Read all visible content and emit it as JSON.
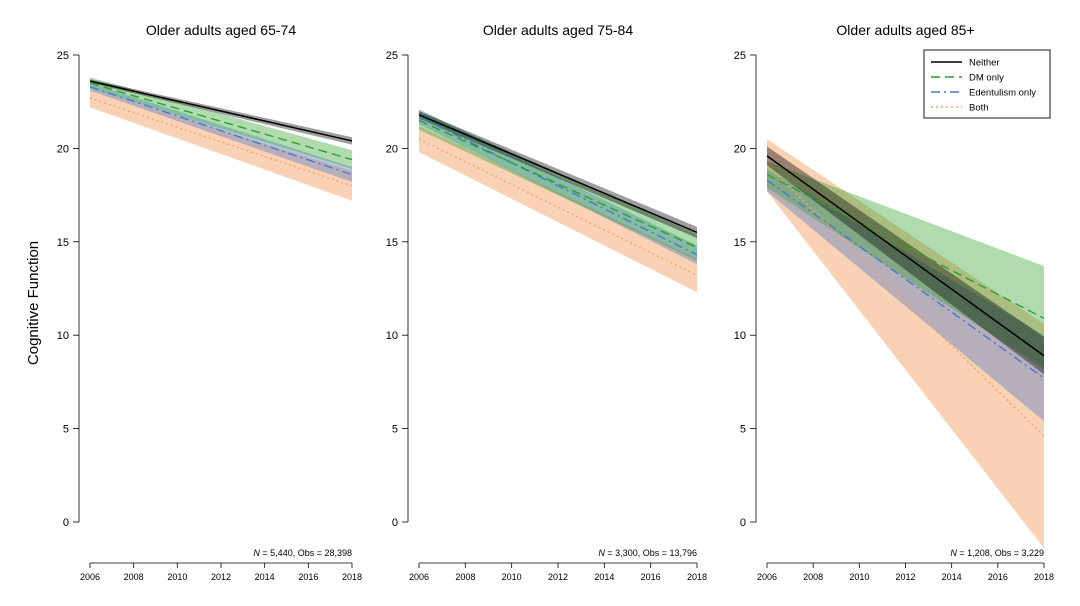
{
  "figure": {
    "ylabel": "Cognitive Function",
    "legend": {
      "placement": "top-right of third panel",
      "entries": [
        {
          "name": "Neither",
          "color": "#000000",
          "dash": "solid"
        },
        {
          "name": "DM only",
          "color": "#2ca02c",
          "dash": "dashed"
        },
        {
          "name": "Edentulism only",
          "color": "#4a77c9",
          "dash": "dashdot"
        },
        {
          "name": "Both",
          "color": "#f4a46a",
          "dash": "dotted"
        }
      ]
    }
  },
  "chart_data": [
    {
      "type": "line",
      "title": "Older adults aged 65-74",
      "note_n": "N",
      "note_text": " = 5,440, Obs = 28,398",
      "xlabel": "",
      "ylabel": "Cognitive Function",
      "x_ticks": [
        "2006",
        "2008",
        "2010",
        "2012",
        "2014",
        "2016",
        "2018"
      ],
      "y_ticks": [
        "0",
        "5",
        "10",
        "15",
        "20",
        "25"
      ],
      "xlim": [
        2006,
        2018
      ],
      "ylim": [
        0,
        25
      ],
      "x": [
        2006,
        2018
      ],
      "series": [
        {
          "name": "Neither",
          "color": "#000000",
          "values": [
            23.6,
            20.4
          ],
          "lower": [
            23.5,
            20.2
          ],
          "upper": [
            23.7,
            20.6
          ]
        },
        {
          "name": "DM only",
          "color": "#2ca02c",
          "values": [
            23.5,
            19.4
          ],
          "lower": [
            23.2,
            18.9
          ],
          "upper": [
            23.8,
            19.9
          ]
        },
        {
          "name": "Edentulism only",
          "color": "#4a77c9",
          "values": [
            23.3,
            18.6
          ],
          "lower": [
            23.1,
            18.2
          ],
          "upper": [
            23.5,
            19.0
          ]
        },
        {
          "name": "Both",
          "color": "#f4a46a",
          "values": [
            22.7,
            18.0
          ],
          "lower": [
            22.2,
            17.2
          ],
          "upper": [
            23.2,
            18.8
          ]
        }
      ]
    },
    {
      "type": "line",
      "title": "Older adults aged 75-84",
      "note_n": "N",
      "note_text": " = 3,300, Obs = 13,796",
      "xlabel": "",
      "ylabel": "",
      "x_ticks": [
        "2006",
        "2008",
        "2010",
        "2012",
        "2014",
        "2016",
        "2018"
      ],
      "y_ticks": [
        "0",
        "5",
        "10",
        "15",
        "20",
        "25"
      ],
      "xlim": [
        2006,
        2018
      ],
      "ylim": [
        0,
        25
      ],
      "x": [
        2006,
        2018
      ],
      "series": [
        {
          "name": "Neither",
          "color": "#000000",
          "values": [
            21.8,
            15.5
          ],
          "lower": [
            21.6,
            15.2
          ],
          "upper": [
            22.0,
            15.8
          ]
        },
        {
          "name": "DM only",
          "color": "#2ca02c",
          "values": [
            21.5,
            14.7
          ],
          "lower": [
            21.0,
            14.0
          ],
          "upper": [
            22.0,
            15.4
          ]
        },
        {
          "name": "Edentulism only",
          "color": "#4a77c9",
          "values": [
            21.7,
            14.3
          ],
          "lower": [
            21.3,
            13.8
          ],
          "upper": [
            22.1,
            14.8
          ]
        },
        {
          "name": "Both",
          "color": "#f4a46a",
          "values": [
            20.5,
            13.2
          ],
          "lower": [
            19.8,
            12.3
          ],
          "upper": [
            21.2,
            14.1
          ]
        }
      ]
    },
    {
      "type": "line",
      "title": "Older adults aged 85+",
      "note_n": "N",
      "note_text": " = 1,208, Obs = 3,229",
      "xlabel": "",
      "ylabel": "",
      "x_ticks": [
        "2006",
        "2008",
        "2010",
        "2012",
        "2014",
        "2016",
        "2018"
      ],
      "y_ticks": [
        "0",
        "5",
        "10",
        "15",
        "20",
        "25"
      ],
      "xlim": [
        2006,
        2018
      ],
      "ylim": [
        0,
        25
      ],
      "x": [
        2006,
        2018
      ],
      "series": [
        {
          "name": "Neither",
          "color": "#000000",
          "values": [
            19.6,
            8.9
          ],
          "lower": [
            19.1,
            7.9
          ],
          "upper": [
            20.1,
            9.9
          ]
        },
        {
          "name": "DM only",
          "color": "#2ca02c",
          "values": [
            18.6,
            10.9
          ],
          "lower": [
            17.9,
            8.2
          ],
          "upper": [
            19.3,
            13.7
          ]
        },
        {
          "name": "Edentulism only",
          "color": "#4a77c9",
          "values": [
            18.3,
            7.7
          ],
          "lower": [
            17.7,
            5.4
          ],
          "upper": [
            18.9,
            10.0
          ]
        },
        {
          "name": "Both",
          "color": "#f4a46a",
          "values": [
            19.1,
            4.6
          ],
          "lower": [
            17.7,
            -1.4
          ],
          "upper": [
            20.5,
            10.6
          ]
        }
      ]
    }
  ]
}
